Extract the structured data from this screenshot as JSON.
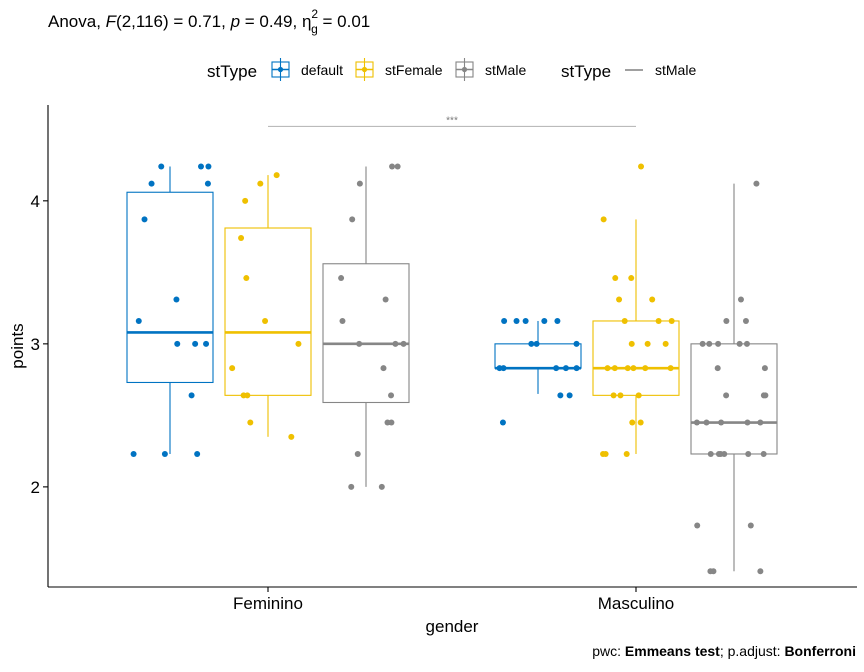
{
  "subtitle": {
    "prefix": "Anova, ",
    "f_symbol": "F",
    "f_args": "(2,116) = 0.71, ",
    "p_symbol": "p",
    "p_value": " = 0.49, ",
    "eta_symbol": "η",
    "eta_sup": "2",
    "eta_sub": "g",
    "eta_value": " = 0.01"
  },
  "caption": {
    "prefix": "pwc: ",
    "test": "Emmeans test",
    "middle": "; p.adjust: ",
    "adjust": "Bonferroni"
  },
  "legend": {
    "placement": "top",
    "fill_title": "stType",
    "line_title": "stType",
    "line_item": "stMale"
  },
  "colors": {
    "default": "#0073C2",
    "stFemale": "#EFC000",
    "stMale": "#868686",
    "axis": "#000000",
    "bracket": "#bbbbbb"
  },
  "chart_data": {
    "type": "box",
    "xlabel": "gender",
    "ylabel": "points",
    "categories": [
      "Feminino",
      "Masculino"
    ],
    "ylim": [
      1.3,
      4.67
    ],
    "yticks": [
      2,
      3,
      4
    ],
    "grid": false,
    "significance": {
      "label": "***",
      "from": "Feminino",
      "to": "Masculino",
      "y": 4.52
    },
    "series": [
      {
        "name": "default",
        "boxes": [
          {
            "q1": 2.73,
            "median": 3.08,
            "q3": 4.06,
            "whisker_low": 2.23,
            "whisker_high": 4.24,
            "points": [
              4.24,
              4.24,
              4.24,
              4.12,
              4.12,
              3.87,
              3.31,
              3.16,
              3.0,
              3.0,
              3.0,
              2.64,
              2.23,
              2.23,
              2.23
            ]
          },
          {
            "q1": 2.83,
            "median": 2.83,
            "q3": 3.0,
            "whisker_low": 2.65,
            "whisker_high": 3.16,
            "points": [
              3.16,
              3.16,
              3.16,
              3.16,
              3.16,
              3.0,
              3.0,
              3.0,
              2.83,
              2.83,
              2.83,
              2.83,
              2.83,
              2.64,
              2.64,
              2.45
            ]
          }
        ]
      },
      {
        "name": "stFemale",
        "boxes": [
          {
            "q1": 2.64,
            "median": 3.08,
            "q3": 3.81,
            "whisker_low": 2.35,
            "whisker_high": 4.18,
            "points": [
              4.18,
              4.12,
              4.0,
              3.74,
              3.46,
              3.16,
              3.0,
              2.83,
              2.64,
              2.64,
              2.45,
              2.35
            ]
          },
          {
            "q1": 2.64,
            "median": 2.83,
            "q3": 3.16,
            "whisker_low": 2.23,
            "whisker_high": 3.87,
            "points": [
              4.24,
              3.87,
              3.46,
              3.46,
              3.31,
              3.31,
              3.16,
              3.16,
              3.16,
              3.0,
              3.0,
              3.0,
              2.83,
              2.83,
              2.83,
              2.83,
              2.83,
              2.83,
              2.64,
              2.64,
              2.64,
              2.45,
              2.45,
              2.23,
              2.23,
              2.23
            ]
          }
        ]
      },
      {
        "name": "stMale",
        "boxes": [
          {
            "q1": 2.59,
            "median": 3.0,
            "q3": 3.56,
            "whisker_low": 2.0,
            "whisker_high": 4.24,
            "points": [
              4.24,
              4.24,
              4.12,
              3.87,
              3.46,
              3.31,
              3.16,
              3.0,
              3.0,
              3.0,
              2.83,
              2.64,
              2.45,
              2.45,
              2.23,
              2.0,
              2.0
            ]
          },
          {
            "q1": 2.23,
            "median": 2.45,
            "q3": 3.0,
            "whisker_low": 1.41,
            "whisker_high": 4.12,
            "points": [
              4.12,
              3.31,
              3.16,
              3.16,
              3.0,
              3.0,
              3.0,
              3.0,
              3.0,
              2.83,
              2.83,
              2.64,
              2.64,
              2.64,
              2.45,
              2.45,
              2.45,
              2.45,
              2.45,
              2.23,
              2.23,
              2.23,
              2.23,
              2.23,
              2.23,
              1.73,
              1.73,
              1.41,
              1.41,
              1.41
            ]
          }
        ]
      }
    ]
  }
}
